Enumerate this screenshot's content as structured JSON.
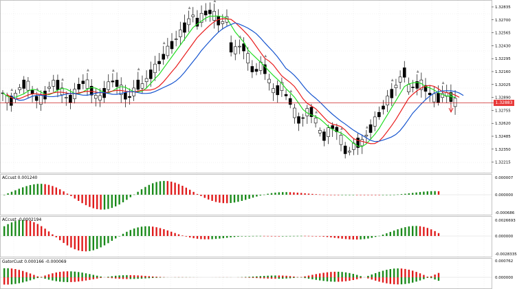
{
  "colors": {
    "bull": "#000000",
    "bear": "#000000",
    "ma_fast": "#22dd22",
    "ma_mid": "#e81c1c",
    "ma_slow": "#1554cf",
    "hist_up": "#1a8a1a",
    "hist_down": "#e01b1b",
    "hline": "#cc2222",
    "grid": "#e6e6e6",
    "up_arrow": "#44bb44",
    "down_arrow": "#e02020"
  },
  "main": {
    "current_price": "1.32883",
    "y_labels": [
      "1.32835",
      "1.32700",
      "1.32565",
      "1.32430",
      "1.32295",
      "1.32160",
      "1.32025",
      "1.32890",
      "1.32755",
      "1.32620",
      "1.32485",
      "1.32350",
      "1.32215"
    ]
  },
  "panes": [
    {
      "label": "ACcust 0.001240",
      "y_labels": [
        "0.000007",
        "0.000000",
        "-0.000686"
      ]
    },
    {
      "label": "ACcust -0.0002194",
      "y_labels": [
        "0.0026693",
        "0.000000",
        "-0.0028335"
      ]
    },
    {
      "label": "GatorCust 0.000166 -0.000069",
      "y_labels": [
        "0.000762",
        "0.000000"
      ]
    }
  ]
}
